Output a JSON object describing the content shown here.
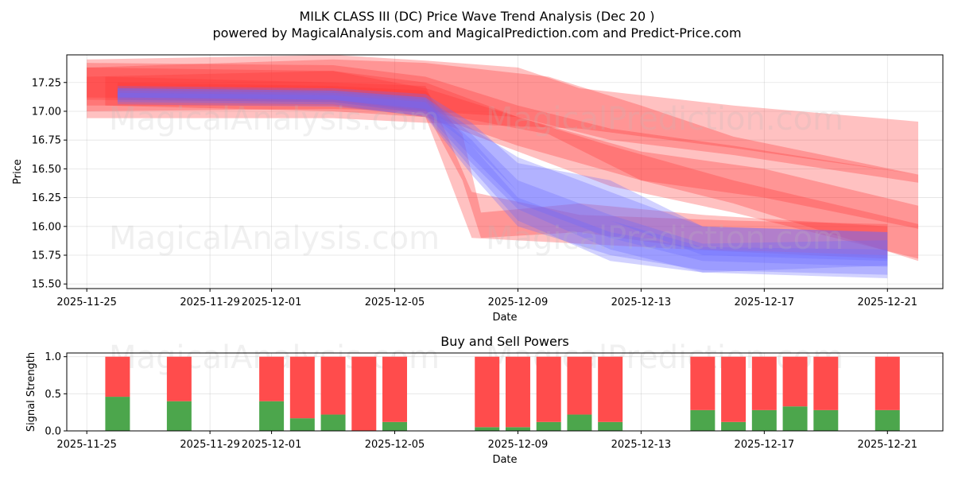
{
  "figure": {
    "title": "MILK CLASS III (DC) Price Wave Trend Analysis (Dec 20 )",
    "subtitle": "powered by MagicalAnalysis.com and MagicalPrediction.com and Predict-Price.com",
    "watermarks": [
      "MagicalAnalysis.com",
      "MagicalPrediction.com"
    ]
  },
  "chart_data": [
    {
      "type": "area",
      "title": "",
      "xlabel": "Date",
      "ylabel": "Price",
      "xlim": [
        "2025-11-24.7",
        "2025-12-22.5"
      ],
      "ylim": [
        15.46,
        17.49
      ],
      "grid": true,
      "x_ticks": [
        "2025-11-25",
        "2025-11-29",
        "2025-12-01",
        "2025-12-05",
        "2025-12-09",
        "2025-12-13",
        "2025-12-17",
        "2025-12-21"
      ],
      "y_ticks": [
        "15.50",
        "15.75",
        "16.00",
        "16.25",
        "16.50",
        "16.75",
        "17.00",
        "17.25"
      ],
      "colors": {
        "sell_band": "#ff3333",
        "buy_band": "#6b6bff"
      },
      "bands": [
        {
          "color": "red",
          "opacity": 0.3,
          "x": [
            0.0,
            8.0,
            11.0,
            14.0,
            16.0,
            21.0,
            27.0
          ],
          "upper": [
            17.45,
            17.49,
            17.44,
            17.38,
            17.2,
            17.05,
            16.91
          ],
          "lower": [
            16.94,
            16.94,
            16.9,
            16.87,
            16.85,
            16.68,
            16.45
          ]
        },
        {
          "color": "red",
          "opacity": 0.3,
          "x": [
            0.0,
            8.0,
            11.0,
            15.0,
            18.0,
            21.0,
            27.0
          ],
          "upper": [
            17.38,
            17.45,
            17.42,
            17.3,
            17.05,
            16.78,
            16.45
          ],
          "lower": [
            17.0,
            17.02,
            17.0,
            16.8,
            16.4,
            16.2,
            15.7
          ]
        },
        {
          "color": "red",
          "opacity": 0.3,
          "x": [
            0.0,
            8.0,
            11.0,
            14.0,
            17.0,
            21.0,
            27.0
          ],
          "upper": [
            17.3,
            17.35,
            17.2,
            16.95,
            16.7,
            16.4,
            16.02
          ],
          "lower": [
            17.05,
            17.05,
            16.95,
            16.65,
            16.35,
            16.12,
            15.72
          ]
        },
        {
          "color": "red",
          "opacity": 0.3,
          "x": [
            0.0,
            8.0,
            11.0,
            14.0,
            17.0,
            21.0,
            27.0
          ],
          "upper": [
            17.42,
            17.4,
            17.3,
            17.05,
            16.85,
            16.7,
            16.45
          ],
          "lower": [
            17.12,
            17.1,
            17.0,
            16.95,
            16.75,
            16.62,
            16.38
          ]
        },
        {
          "color": "red",
          "opacity": 0.3,
          "x": [
            0.0,
            8.0,
            11.0,
            14.0,
            18.0,
            22.0,
            27.0
          ],
          "upper": [
            17.38,
            17.35,
            17.25,
            16.95,
            16.65,
            16.5,
            16.18
          ],
          "lower": [
            17.1,
            17.08,
            16.98,
            16.7,
            16.4,
            16.25,
            15.98
          ]
        },
        {
          "color": "red",
          "opacity": 0.3,
          "x": [
            0.6,
            8.0,
            11.0,
            12.5,
            16.0,
            21.0,
            26.0
          ],
          "upper": [
            17.3,
            17.25,
            17.22,
            16.3,
            16.1,
            16.05,
            16.02
          ],
          "lower": [
            17.05,
            17.0,
            16.95,
            15.9,
            15.85,
            15.78,
            15.72
          ]
        },
        {
          "color": "red",
          "opacity": 0.3,
          "x": [
            1.0,
            8.0,
            11.0,
            12.2,
            12.8,
            16.0,
            20.0,
            26.0
          ],
          "upper": [
            17.25,
            17.22,
            17.18,
            16.8,
            16.12,
            16.2,
            16.1,
            16.0
          ],
          "lower": [
            17.1,
            17.08,
            17.0,
            16.4,
            15.9,
            15.95,
            15.8,
            15.75
          ]
        },
        {
          "color": "blue",
          "opacity": 0.3,
          "x": [
            1.0,
            8.0,
            11.0,
            12.5,
            14.0,
            17.0,
            20.0,
            26.0
          ],
          "upper": [
            17.22,
            17.2,
            17.15,
            16.9,
            16.55,
            16.4,
            16.0,
            15.95
          ],
          "lower": [
            17.12,
            17.1,
            17.0,
            16.7,
            16.3,
            16.05,
            15.75,
            15.7
          ]
        },
        {
          "color": "blue",
          "opacity": 0.3,
          "x": [
            1.0,
            8.0,
            11.0,
            12.5,
            14.0,
            17.0,
            20.0,
            26.0
          ],
          "upper": [
            17.2,
            17.18,
            17.12,
            16.8,
            16.4,
            16.1,
            15.85,
            15.88
          ],
          "lower": [
            17.1,
            17.08,
            16.98,
            16.55,
            16.15,
            15.8,
            15.6,
            15.66
          ]
        },
        {
          "color": "blue",
          "opacity": 0.3,
          "x": [
            1.0,
            8.0,
            11.0,
            12.5,
            14.0,
            17.0,
            20.0,
            26.0
          ],
          "upper": [
            17.18,
            17.16,
            17.1,
            16.75,
            16.3,
            16.05,
            15.82,
            15.8
          ],
          "lower": [
            17.08,
            17.06,
            16.95,
            16.45,
            16.0,
            15.75,
            15.62,
            15.58
          ]
        },
        {
          "color": "blue",
          "opacity": 0.3,
          "x": [
            1.0,
            8.0,
            11.0,
            12.5,
            14.0,
            17.0,
            20.0,
            26.0
          ],
          "upper": [
            17.2,
            17.18,
            17.12,
            16.85,
            16.6,
            16.3,
            16.0,
            15.95
          ],
          "lower": [
            17.12,
            17.1,
            17.02,
            16.6,
            16.2,
            15.9,
            15.7,
            15.65
          ]
        },
        {
          "color": "blue",
          "opacity": 0.3,
          "x": [
            1.0,
            8.0,
            11.0,
            12.5,
            14.0,
            17.0,
            20.0,
            26.0
          ],
          "upper": [
            17.16,
            17.14,
            17.08,
            16.7,
            16.25,
            15.95,
            15.8,
            15.75
          ],
          "lower": [
            17.06,
            17.04,
            16.96,
            16.5,
            16.05,
            15.7,
            15.6,
            15.55
          ]
        }
      ]
    },
    {
      "type": "bar",
      "title": "Buy and Sell Powers",
      "xlabel": "Date",
      "ylabel": "Signal Strength",
      "xlim": [
        "2025-11-24.7",
        "2025-12-22.5"
      ],
      "ylim": [
        0,
        1.05
      ],
      "grid": true,
      "x_ticks": [
        "2025-11-25",
        "2025-11-29",
        "2025-12-01",
        "2025-12-05",
        "2025-12-09",
        "2025-12-13",
        "2025-12-17",
        "2025-12-21"
      ],
      "y_ticks": [
        "0.0",
        "0.5",
        "1.0"
      ],
      "colors": {
        "buy": "#4ca64c",
        "sell": "#ff4c4c"
      },
      "categories": [
        "2025-11-26",
        "2025-11-28",
        "2025-12-01",
        "2025-12-02",
        "2025-12-03",
        "2025-12-04",
        "2025-12-05",
        "2025-12-08",
        "2025-12-09",
        "2025-12-10",
        "2025-12-11",
        "2025-12-12",
        "2025-12-15",
        "2025-12-16",
        "2025-12-17",
        "2025-12-18",
        "2025-12-19",
        "2025-12-21"
      ],
      "series": [
        {
          "name": "Buy",
          "values": [
            0.46,
            0.4,
            0.4,
            0.17,
            0.22,
            0.0,
            0.12,
            0.05,
            0.05,
            0.12,
            0.22,
            0.12,
            0.28,
            0.12,
            0.28,
            0.33,
            0.28,
            0.28
          ]
        },
        {
          "name": "Sell",
          "values": [
            0.54,
            0.6,
            0.6,
            0.83,
            0.78,
            1.0,
            0.88,
            0.95,
            0.95,
            0.88,
            0.78,
            0.88,
            0.72,
            0.88,
            0.72,
            0.67,
            0.72,
            0.72
          ]
        }
      ]
    }
  ]
}
